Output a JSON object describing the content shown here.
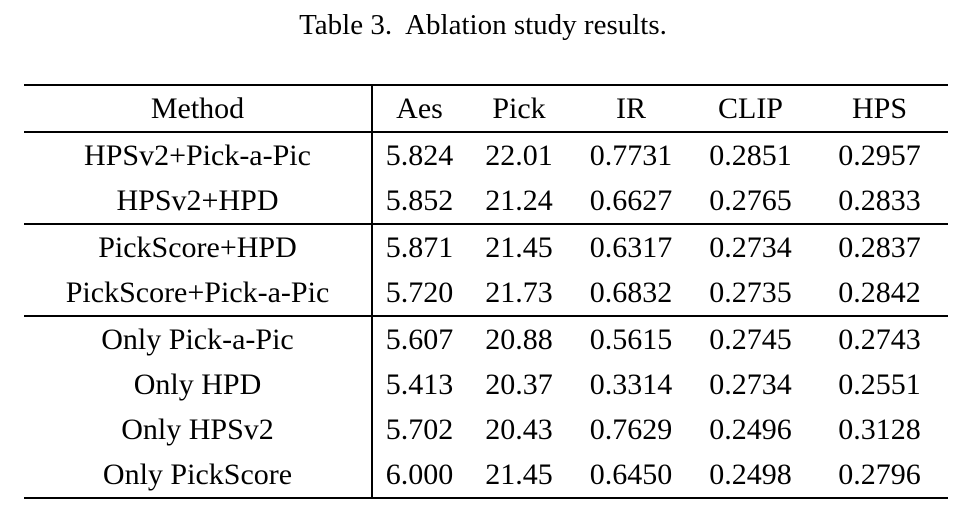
{
  "caption": {
    "label": "Table 3.",
    "text": "Ablation study results."
  },
  "table": {
    "columns": [
      "Method",
      "Aes",
      "Pick",
      "IR",
      "CLIP",
      "HPS"
    ],
    "groups": [
      {
        "rows": [
          {
            "method": "HPSv2+Pick-a-Pic",
            "values": [
              "5.824",
              "22.01",
              "0.7731",
              "0.2851",
              "0.2957"
            ]
          },
          {
            "method": "HPSv2+HPD",
            "values": [
              "5.852",
              "21.24",
              "0.6627",
              "0.2765",
              "0.2833"
            ]
          }
        ]
      },
      {
        "rows": [
          {
            "method": "PickScore+HPD",
            "values": [
              "5.871",
              "21.45",
              "0.6317",
              "0.2734",
              "0.2837"
            ]
          },
          {
            "method": "PickScore+Pick-a-Pic",
            "values": [
              "5.720",
              "21.73",
              "0.6832",
              "0.2735",
              "0.2842"
            ]
          }
        ]
      },
      {
        "rows": [
          {
            "method": "Only Pick-a-Pic",
            "values": [
              "5.607",
              "20.88",
              "0.5615",
              "0.2745",
              "0.2743"
            ]
          },
          {
            "method": "Only HPD",
            "values": [
              "5.413",
              "20.37",
              "0.3314",
              "0.2734",
              "0.2551"
            ]
          },
          {
            "method": "Only HPSv2",
            "values": [
              "5.702",
              "20.43",
              "0.7629",
              "0.2496",
              "0.3128"
            ]
          },
          {
            "method": "Only PickScore",
            "values": [
              "6.000",
              "21.45",
              "0.6450",
              "0.2498",
              "0.2796"
            ]
          }
        ]
      }
    ]
  },
  "chart_data": {
    "type": "table",
    "title": "Table 3. Ablation study results.",
    "columns": [
      "Method",
      "Aes",
      "Pick",
      "IR",
      "CLIP",
      "HPS"
    ],
    "rows": [
      [
        "HPSv2+Pick-a-Pic",
        5.824,
        22.01,
        0.7731,
        0.2851,
        0.2957
      ],
      [
        "HPSv2+HPD",
        5.852,
        21.24,
        0.6627,
        0.2765,
        0.2833
      ],
      [
        "PickScore+HPD",
        5.871,
        21.45,
        0.6317,
        0.2734,
        0.2837
      ],
      [
        "PickScore+Pick-a-Pic",
        5.72,
        21.73,
        0.6832,
        0.2735,
        0.2842
      ],
      [
        "Only Pick-a-Pic",
        5.607,
        20.88,
        0.5615,
        0.2745,
        0.2743
      ],
      [
        "Only HPD",
        5.413,
        20.37,
        0.3314,
        0.2734,
        0.2551
      ],
      [
        "Only HPSv2",
        5.702,
        20.43,
        0.7629,
        0.2496,
        0.3128
      ],
      [
        "Only PickScore",
        6.0,
        21.45,
        0.645,
        0.2498,
        0.2796
      ]
    ]
  }
}
